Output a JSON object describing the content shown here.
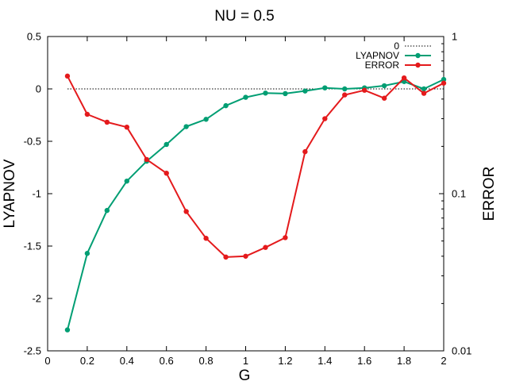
{
  "chart_data": {
    "type": "line",
    "title": "NU = 0.5",
    "xlabel": "G",
    "ylabel": "LYAPNOV",
    "y2label": "ERROR",
    "xlim": [
      0,
      2
    ],
    "ylim": [
      -2.5,
      0.5
    ],
    "y2lim": [
      0.01,
      1
    ],
    "y2scale": "log",
    "grid": false,
    "legend_position": "top-right",
    "x_ticks": [
      "0",
      "0.2",
      "0.4",
      "0.6",
      "0.8",
      "1",
      "1.2",
      "1.4",
      "1.6",
      "1.8",
      "2"
    ],
    "y_ticks": [
      "-2.5",
      "-2",
      "-1.5",
      "-1",
      "-0.5",
      "0",
      "0.5"
    ],
    "y2_ticks": [
      "0.01",
      "0.1",
      "1"
    ],
    "series": [
      {
        "name": "0",
        "axis": "y",
        "style": "dotted",
        "color": "#000000",
        "x": [
          0.1,
          2.0
        ],
        "values": [
          0,
          0
        ]
      },
      {
        "name": "LYAPNOV",
        "axis": "y",
        "style": "line-points",
        "color": "#009e73",
        "x": [
          0.1,
          0.2,
          0.3,
          0.4,
          0.5,
          0.6,
          0.7,
          0.8,
          0.9,
          1.0,
          1.1,
          1.2,
          1.3,
          1.4,
          1.5,
          1.6,
          1.7,
          1.8,
          1.9,
          2.0
        ],
        "values": [
          -2.3,
          -1.57,
          -1.16,
          -0.88,
          -0.69,
          -0.53,
          -0.36,
          -0.29,
          -0.16,
          -0.08,
          -0.04,
          -0.045,
          -0.02,
          0.01,
          0.0,
          0.01,
          0.03,
          0.07,
          0.0,
          0.09
        ]
      },
      {
        "name": "ERROR",
        "axis": "y2",
        "style": "line-points",
        "color": "#e41a1c",
        "x": [
          0.1,
          0.2,
          0.3,
          0.4,
          0.5,
          0.6,
          0.7,
          0.8,
          0.9,
          1.0,
          1.1,
          1.2,
          1.3,
          1.4,
          1.5,
          1.6,
          1.7,
          1.8,
          1.9,
          2.0
        ],
        "values": [
          0.56,
          0.32,
          0.285,
          0.265,
          0.165,
          0.135,
          0.077,
          0.052,
          0.0395,
          0.04,
          0.0455,
          0.0525,
          0.185,
          0.3,
          0.425,
          0.455,
          0.405,
          0.545,
          0.435,
          0.505
        ]
      }
    ]
  }
}
